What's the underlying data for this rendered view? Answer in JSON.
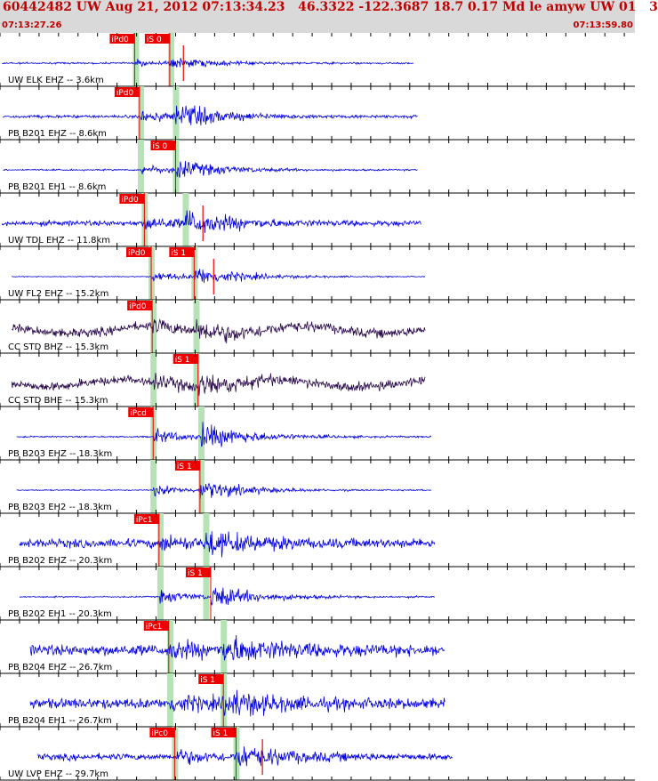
{
  "header": {
    "title": "60442482 UW Aug 21, 2012 07:13:34.23   46.3322 -122.3687 18.7 0.17 Md le amyw UW 01   3",
    "start_time": "07:13:27.26",
    "end_time": "07:13:59.80"
  },
  "colors": {
    "header_bg": "#d9d9d9",
    "header_text": "#c00000",
    "trace_blue": "#0000dd",
    "trace_dark": "#2a0a4a",
    "pick_red": "#ee0000",
    "window_green": "#b5e3b5",
    "separator": "#000000"
  },
  "chart_data": {
    "type": "seismogram",
    "x_range_s": [
      0,
      32.54
    ],
    "traces": [
      {
        "label": "UW ELK EHZ -- 3.6km",
        "color": "blue",
        "amp": 0.3,
        "noise": 0.06,
        "p_pick": {
          "label": "iPd0",
          "t": 6.9
        },
        "s_pick": {
          "label": "iS 0",
          "t": 8.7
        },
        "p_win": 6.95,
        "s_win": 8.75,
        "red_mark": 9.4,
        "trace_span": [
          0.1,
          21.2
        ]
      },
      {
        "label": "PB B201 EHZ -- 8.6km",
        "color": "blue",
        "amp": 0.7,
        "noise": 0.1,
        "p_pick": {
          "label": "iPd0",
          "t": 7.15
        },
        "s_pick": null,
        "p_win": 7.2,
        "s_win": 9.0,
        "trace_span": [
          0.15,
          21.4
        ]
      },
      {
        "label": "PB B201 EH1 -- 8.6km",
        "color": "blue",
        "amp": 0.55,
        "noise": 0.05,
        "p_pick": null,
        "s_pick": {
          "label": "iS 0",
          "t": 9.0
        },
        "p_win": 7.2,
        "s_win": 9.0,
        "trace_span": [
          0.15,
          21.4
        ]
      },
      {
        "label": "UW TDL EHZ -- 11.8km",
        "color": "blue",
        "amp": 0.7,
        "noise": 0.18,
        "p_pick": {
          "label": "iPd0",
          "t": 7.4
        },
        "s_pick": null,
        "p_win": 7.4,
        "s_win": 9.5,
        "red_mark": 10.4,
        "trace_span": [
          0.1,
          21.6
        ]
      },
      {
        "label": "UW FL2 EHZ -- 15.2km",
        "color": "blue",
        "amp": 0.6,
        "noise": 0.03,
        "p_pick": {
          "label": "iPd0",
          "t": 7.75
        },
        "s_pick": {
          "label": "iS 1",
          "t": 9.95
        },
        "p_win": 7.75,
        "s_win": 9.95,
        "red_mark": 10.95,
        "trace_span": [
          0.6,
          21.8
        ]
      },
      {
        "label": "CC STD BHZ -- 15.3km",
        "color": "dark",
        "amp": 0.5,
        "noise": 0.3,
        "p_pick": {
          "label": "iPd0",
          "t": 7.8
        },
        "s_pick": null,
        "p_win": 7.85,
        "s_win": 10.05,
        "trace_span": [
          0.6,
          21.8
        ]
      },
      {
        "label": "CC STD BHE -- 15.3km",
        "color": "dark",
        "amp": 0.5,
        "noise": 0.3,
        "p_pick": null,
        "s_pick": {
          "label": "iS 1",
          "t": 10.15
        },
        "p_win": 7.85,
        "s_win": 10.05,
        "trace_span": [
          0.6,
          21.8
        ]
      },
      {
        "label": "PB B203 EHZ -- 18.3km",
        "color": "blue",
        "amp": 0.8,
        "noise": 0.05,
        "p_pick": {
          "label": "iPcd",
          "t": 7.85
        },
        "s_pick": null,
        "p_win": 7.85,
        "s_win": 10.3,
        "trace_span": [
          0.85,
          22.1
        ]
      },
      {
        "label": "PB B203 EH2 -- 18.3km",
        "color": "blue",
        "amp": 0.6,
        "noise": 0.04,
        "p_pick": null,
        "s_pick": {
          "label": "iS 1",
          "t": 10.25
        },
        "p_win": 7.85,
        "s_win": 10.3,
        "trace_span": [
          0.85,
          22.1
        ]
      },
      {
        "label": "PB B202 EHZ -- 20.3km",
        "color": "blue",
        "amp": 0.7,
        "noise": 0.3,
        "p_pick": {
          "label": "iPc1",
          "t": 8.15
        },
        "s_pick": null,
        "p_win": 8.2,
        "s_win": 10.55,
        "trace_span": [
          1.0,
          22.3
        ]
      },
      {
        "label": "PB B202 EH1 -- 20.3km",
        "color": "blue",
        "amp": 0.7,
        "noise": 0.05,
        "p_pick": null,
        "s_pick": {
          "label": "iS 1",
          "t": 10.8
        },
        "p_win": 8.2,
        "s_win": 10.55,
        "trace_span": [
          1.0,
          22.3
        ]
      },
      {
        "label": "PB B204 EHZ -- 26.7km",
        "color": "blue",
        "amp": 0.75,
        "noise": 0.38,
        "p_pick": {
          "label": "iPc1",
          "t": 8.65
        },
        "s_pick": null,
        "p_win": 8.7,
        "s_win": 11.45,
        "trace_span": [
          1.55,
          22.8
        ]
      },
      {
        "label": "PB B204 EH1 -- 26.7km",
        "color": "blue",
        "amp": 0.75,
        "noise": 0.35,
        "p_pick": null,
        "s_pick": {
          "label": "iS 1",
          "t": 11.45
        },
        "p_win": 8.7,
        "s_win": 11.45,
        "trace_span": [
          1.55,
          22.8
        ]
      },
      {
        "label": "UW LVP EHZ -- 29.7km",
        "color": "blue",
        "amp": 0.7,
        "noise": 0.22,
        "p_pick": {
          "label": "iPc0",
          "t": 8.95
        },
        "s_pick": {
          "label": "iS 1",
          "t": 12.1
        },
        "p_win": 8.95,
        "s_win": 12.1,
        "red_mark": 13.45,
        "trace_span": [
          1.95,
          23.2
        ]
      }
    ]
  }
}
